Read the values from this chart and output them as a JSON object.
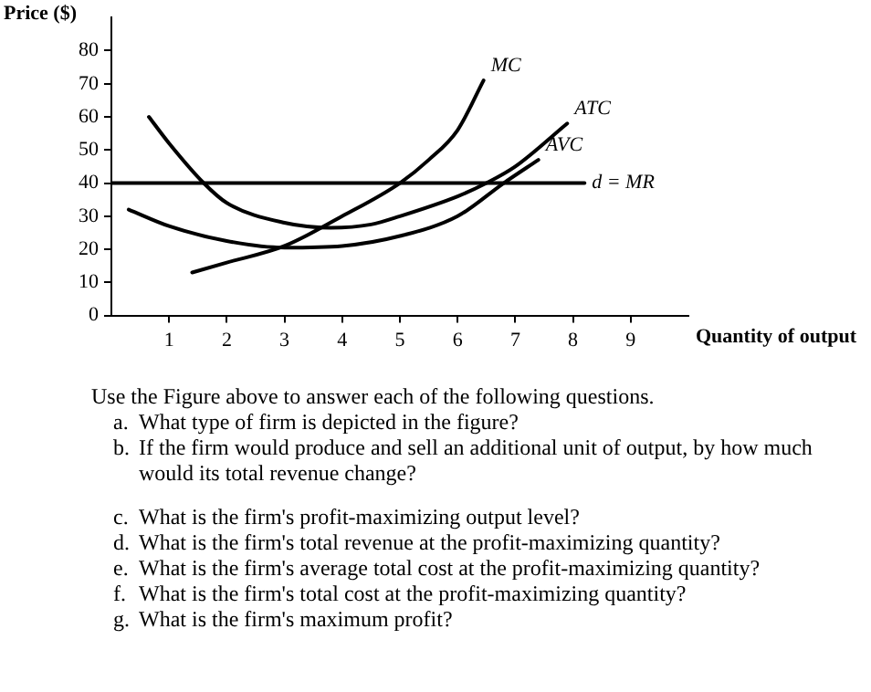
{
  "chart_data": {
    "type": "line",
    "xlabel": "Quantity of output",
    "ylabel": "Price ($)",
    "xlim": [
      0,
      10
    ],
    "ylim": [
      0,
      90
    ],
    "xticks": [
      1,
      2,
      3,
      4,
      5,
      6,
      7,
      8,
      9
    ],
    "yticks": [
      0,
      10,
      20,
      30,
      40,
      50,
      60,
      70,
      80
    ],
    "grid": false,
    "legend": false,
    "marker": "none",
    "line_style": "solid",
    "series": [
      {
        "name": "MC",
        "color": "#000000",
        "x": [
          1.4,
          2,
          3,
          4,
          5,
          5.5,
          6,
          6.45
        ],
        "values": [
          13,
          16,
          21,
          30,
          40,
          47,
          56,
          71
        ]
      },
      {
        "name": "ATC",
        "color": "#000000",
        "x": [
          0.65,
          1,
          1.6,
          2,
          3,
          3.8,
          4.5,
          5,
          6,
          6.5,
          7,
          7.9
        ],
        "values": [
          60,
          52,
          40,
          34,
          28,
          26.5,
          27.5,
          30,
          36,
          40,
          45,
          58
        ]
      },
      {
        "name": "AVC",
        "color": "#000000",
        "x": [
          0.3,
          1,
          2,
          3,
          4,
          5,
          6,
          6.8,
          7.4
        ],
        "values": [
          32,
          27,
          22.5,
          20.5,
          21,
          24,
          30,
          40,
          47
        ]
      },
      {
        "name": "d = MR",
        "color": "#000000",
        "x": [
          0,
          8.2
        ],
        "values": [
          40,
          40
        ]
      }
    ],
    "annotations": [
      "Use the Figure above to answer each of the following questions.",
      "a.\tWhat type of firm is depicted in the figure?",
      "b.\tIf the firm would produce and sell an additional unit of output, by how much would its total revenue change?",
      "c.\tWhat is the firm's profit-maximizing output level?",
      "d.\tWhat is the firm's total revenue at the profit-maximizing quantity?",
      "e.\tWhat is the firm's average total cost at the profit-maximizing quantity?",
      "f.\tWhat is the firm's total cost at the profit-maximizing quantity?",
      "g.\tWhat is the firm's maximum profit?"
    ]
  }
}
